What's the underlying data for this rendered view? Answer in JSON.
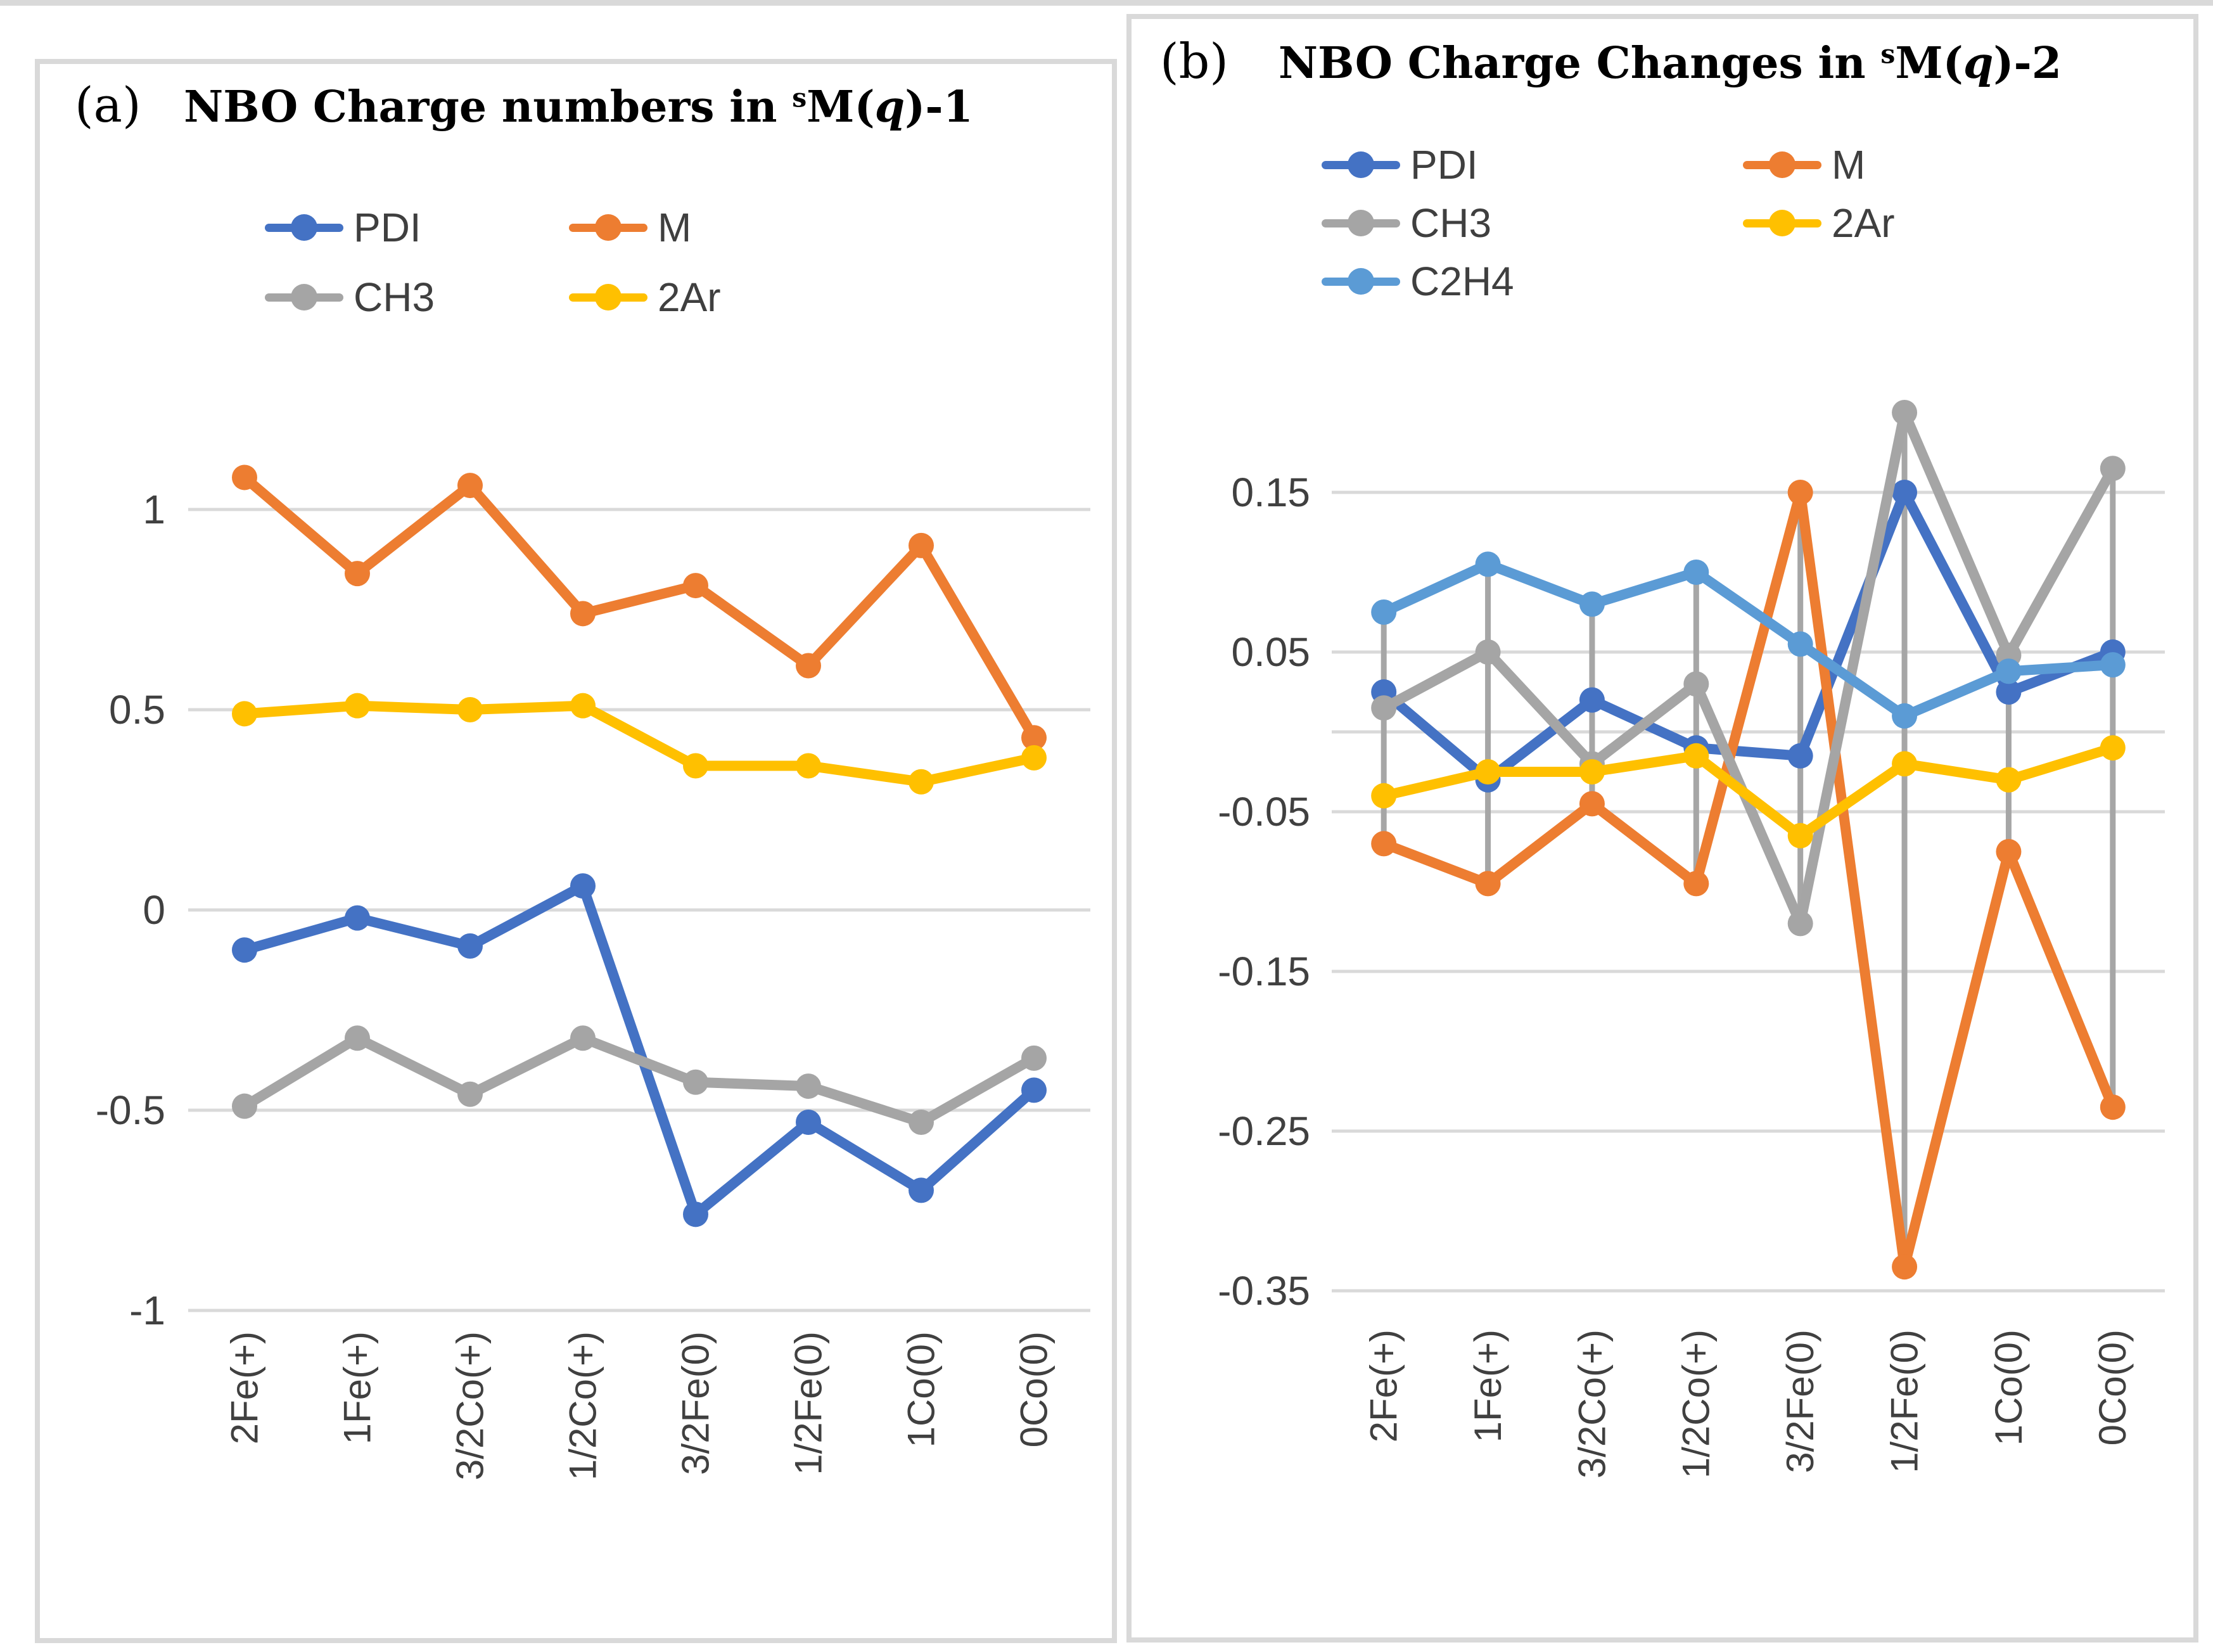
{
  "page": {
    "background": "#ffffff",
    "panel_border_color": "#d9d9d9",
    "gridline_color": "#d9d9d9",
    "high_low_line_color": "#a6a6a6",
    "tick_label_color": "#404040",
    "legend_text_color": "#3f3f3f"
  },
  "chart_data": [
    {
      "id": "a",
      "type": "line",
      "panel_label": "(a)",
      "title": "NBO Charge numbers in sM(q)-1",
      "title_parts": {
        "prefix": "NBO Charge numbers in ",
        "sup": "s",
        "m": "M(",
        "q": "q",
        "suffix": ")-1"
      },
      "categories": [
        "2Fe(+)",
        "1Fe(+)",
        "3/2Co(+)",
        "1/2Co(+)",
        "3/2Fe(0)",
        "1/2Fe(0)",
        "1Co(0)",
        "0Co(0)"
      ],
      "series": [
        {
          "name": "PDI",
          "color": "#4472C4",
          "values": [
            -0.1,
            -0.02,
            -0.09,
            0.06,
            -0.76,
            -0.53,
            -0.7,
            -0.45
          ]
        },
        {
          "name": "M",
          "color": "#ED7D31",
          "values": [
            1.08,
            0.84,
            1.06,
            0.74,
            0.81,
            0.61,
            0.91,
            0.43
          ]
        },
        {
          "name": "CH3",
          "color": "#A5A5A5",
          "values": [
            -0.49,
            -0.32,
            -0.46,
            -0.32,
            -0.43,
            -0.44,
            -0.53,
            -0.37
          ]
        },
        {
          "name": "2Ar",
          "color": "#FFC000",
          "values": [
            0.49,
            0.51,
            0.5,
            0.51,
            0.36,
            0.36,
            0.32,
            0.38
          ]
        }
      ],
      "y_ticks": [
        1,
        0.5,
        0,
        -0.5,
        -1
      ],
      "y_tick_labels": [
        "1",
        "0.5",
        "0",
        "-0.5",
        "-1"
      ],
      "ylim": [
        -1.08,
        1.18
      ],
      "grid": true,
      "zero_axis_line": false,
      "high_low_lines": false,
      "legend_position": "top",
      "legend_columns": 2,
      "xlabel": "",
      "ylabel": ""
    },
    {
      "id": "b",
      "type": "line",
      "panel_label": "(b)",
      "title": "NBO Charge Changes in sM(q)-2",
      "title_parts": {
        "prefix": "NBO Charge Changes in ",
        "sup": "s",
        "m": "M(",
        "q": "q",
        "suffix": ")-2"
      },
      "categories": [
        "2Fe(+)",
        "1Fe(+)",
        "3/2Co(+)",
        "1/2Co(+)",
        "3/2Fe(0)",
        "1/2Fe(0)",
        "1Co(0)",
        "0Co(0)"
      ],
      "series": [
        {
          "name": "PDI",
          "color": "#4472C4",
          "values": [
            0.025,
            -0.03,
            0.02,
            -0.01,
            -0.015,
            0.15,
            0.025,
            0.05
          ]
        },
        {
          "name": "M",
          "color": "#ED7D31",
          "values": [
            -0.07,
            -0.095,
            -0.045,
            -0.095,
            0.15,
            -0.335,
            -0.075,
            -0.235
          ]
        },
        {
          "name": "CH3",
          "color": "#A5A5A5",
          "values": [
            0.015,
            0.05,
            -0.02,
            0.03,
            -0.12,
            0.2,
            0.048,
            0.165
          ]
        },
        {
          "name": "2Ar",
          "color": "#FFC000",
          "values": [
            -0.04,
            -0.025,
            -0.025,
            -0.015,
            -0.065,
            -0.02,
            -0.03,
            -0.01
          ]
        },
        {
          "name": "C2H4",
          "color": "#5B9BD5",
          "values": [
            0.075,
            0.105,
            0.08,
            0.1,
            0.055,
            0.01,
            0.038,
            0.042
          ]
        }
      ],
      "y_ticks": [
        0.15,
        0.05,
        -0.05,
        -0.15,
        -0.25,
        -0.35
      ],
      "y_tick_labels": [
        "0.15",
        "0.05",
        "-0.05",
        "-0.15",
        "-0.25",
        "-0.35"
      ],
      "ylim": [
        -0.37,
        0.19
      ],
      "grid": true,
      "zero_axis_line": true,
      "high_low_lines": true,
      "legend_position": "top",
      "legend_columns": 2,
      "xlabel": "",
      "ylabel": ""
    }
  ]
}
